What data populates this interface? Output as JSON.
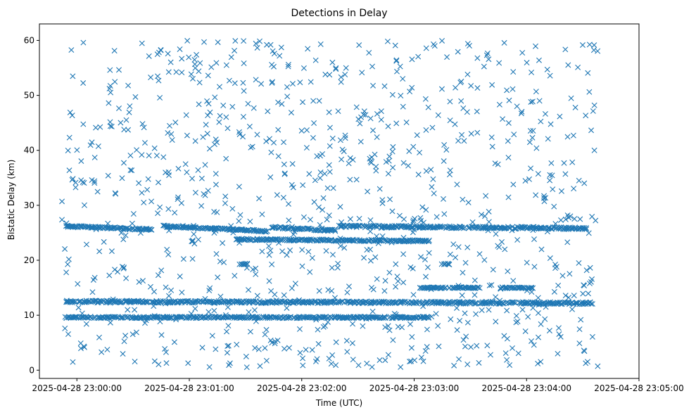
{
  "chart_data": {
    "type": "scatter",
    "title": "Detections in Delay",
    "xlabel": "Time (UTC)",
    "ylabel": "Bistatic Delay (km)",
    "marker": "x",
    "color": "#1f77b4",
    "x_unit": "seconds after 2025-04-28 23:00:00 UTC",
    "xlim": [
      -20,
      300
    ],
    "ylim": [
      -1.5,
      63
    ],
    "x_ticks": [
      {
        "value": 0,
        "label": "2025-04-28 23:00:00"
      },
      {
        "value": 60,
        "label": "2025-04-28 23:01:00"
      },
      {
        "value": 120,
        "label": "2025-04-28 23:02:00"
      },
      {
        "value": 180,
        "label": "2025-04-28 23:03:00"
      },
      {
        "value": 240,
        "label": "2025-04-28 23:04:00"
      },
      {
        "value": 300,
        "label": "2025-04-28 23:05:00"
      }
    ],
    "y_ticks": [
      0,
      10,
      20,
      30,
      40,
      50,
      60
    ],
    "grid": false,
    "legend": "none",
    "x_range_data": [
      -8,
      278
    ],
    "bands": [
      {
        "y_start": 26.2,
        "y_end": 25.6,
        "x_start": -6,
        "x_end": 40,
        "y_wobble": 0.15
      },
      {
        "y_start": 26.2,
        "y_end": 25.3,
        "x_start": 46,
        "x_end": 102,
        "y_wobble": 0.15
      },
      {
        "y_start": 26.0,
        "y_end": 25.4,
        "x_start": 104,
        "x_end": 138,
        "y_wobble": 0.15
      },
      {
        "y_start": 26.2,
        "y_end": 25.8,
        "x_start": 140,
        "x_end": 272,
        "y_wobble": 0.2
      },
      {
        "y_start": 12.5,
        "y_end": 12.2,
        "x_start": -6,
        "x_end": 275,
        "y_wobble": 0.2
      },
      {
        "y_start": 9.6,
        "y_end": 9.6,
        "x_start": -6,
        "x_end": 188,
        "y_wobble": 0.15
      },
      {
        "y_start": 15.0,
        "y_end": 15.0,
        "x_start": 183,
        "x_end": 215,
        "y_wobble": 0.1
      },
      {
        "y_start": 15.0,
        "y_end": 15.0,
        "x_start": 226,
        "x_end": 244,
        "y_wobble": 0.1
      },
      {
        "y_start": 23.8,
        "y_end": 23.5,
        "x_start": 85,
        "x_end": 188,
        "y_wobble": 0.15
      },
      {
        "y_start": 19.3,
        "y_end": 19.3,
        "x_start": 87,
        "x_end": 91,
        "y_wobble": 0.1
      },
      {
        "y_start": 19.3,
        "y_end": 19.3,
        "x_start": 195,
        "x_end": 199,
        "y_wobble": 0.1
      }
    ],
    "scatter_points": 950,
    "scatter_y_range": [
      0.5,
      60
    ],
    "seed": 12345
  }
}
